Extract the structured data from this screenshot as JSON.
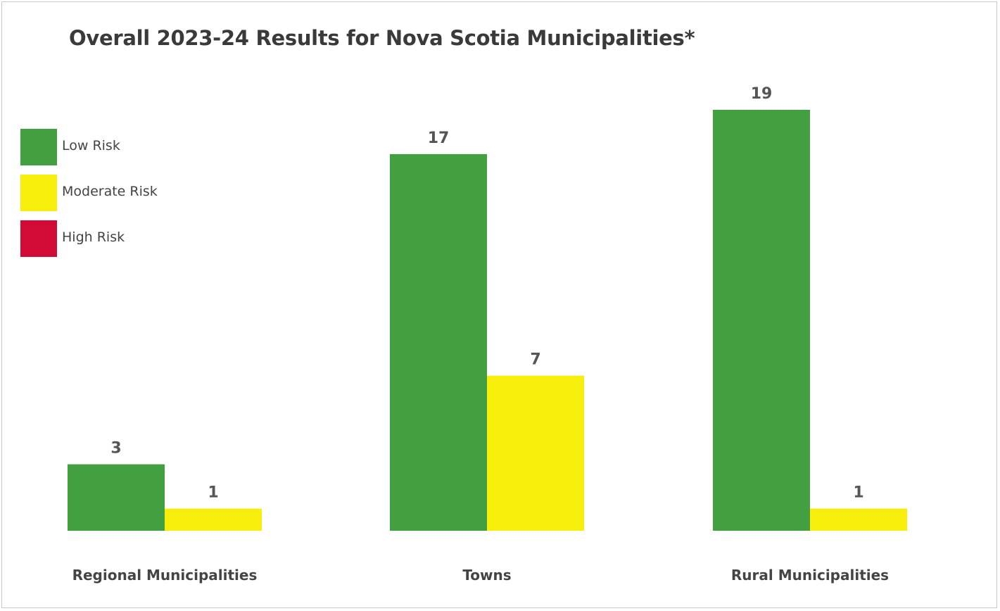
{
  "chart_data": {
    "type": "bar",
    "title": "Overall 2023-24 Results for Nova Scotia Municipalities*",
    "categories": [
      "Regional Municipalities",
      "Towns",
      "Rural Municipalities"
    ],
    "series": [
      {
        "name": "Low Risk",
        "color": "#43a040",
        "values": [
          3,
          17,
          19
        ]
      },
      {
        "name": "Moderate Risk",
        "color": "#f8ee0c",
        "values": [
          1,
          7,
          1
        ]
      },
      {
        "name": "High Risk",
        "color": "#d10a36",
        "values": [
          0,
          0,
          0
        ]
      }
    ],
    "ylim": [
      0,
      19
    ],
    "grid": false,
    "legend_position": "left"
  }
}
